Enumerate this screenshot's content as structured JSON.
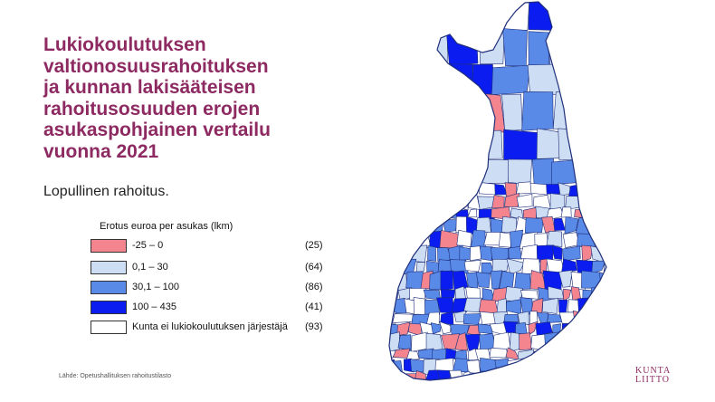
{
  "title_lines": [
    "Lukiokoulutuksen",
    "valtionosuusrahoituksen",
    "ja kunnan lakisääteisen",
    "rahoitusosuuden erojen",
    "asukaspohjainen vertailu",
    "vuonna 2021"
  ],
  "subtitle": "Lopullinen rahoitus.",
  "legend": {
    "title": "Erotus euroa per asukas (lkm)",
    "items": [
      {
        "range": "-25    –     0",
        "count": "(25)",
        "color": "#f4858e"
      },
      {
        "range": "  0,1   –    30",
        "count": "(64)",
        "color": "#cdddf4"
      },
      {
        "range": "30,1  –  100",
        "count": "(86)",
        "color": "#5a8ae8"
      },
      {
        "range": "100    –  435",
        "count": "(41)",
        "color": "#0a1cf0"
      },
      {
        "range": "Kunta ei lukiokoulutuksen järjestäjä",
        "count": "(93)",
        "color": "#ffffff"
      }
    ]
  },
  "source": "Lähde: Opetushallituksen rahoitustilasto",
  "logo_lines": [
    "KUNTA",
    "LIITTO"
  ],
  "colors": {
    "title": "#8e2a62",
    "border": "#1f2f7a"
  }
}
